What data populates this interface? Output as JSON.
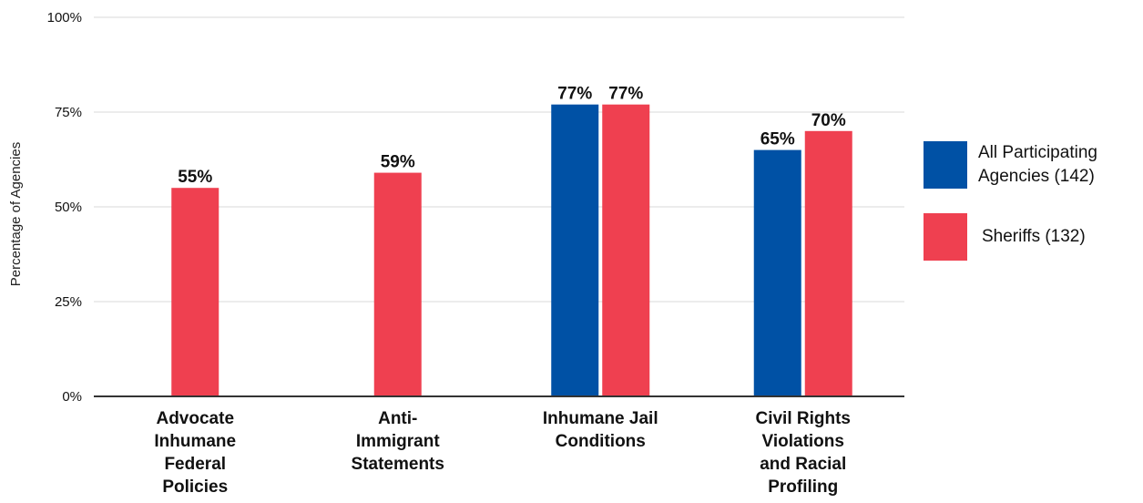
{
  "chart_data": {
    "type": "bar",
    "categories": [
      [
        "Advocate",
        "Inhumane",
        "Federal",
        "Policies"
      ],
      [
        "Anti-",
        "Immigrant",
        "Statements"
      ],
      [
        "Inhumane Jail",
        "Conditions"
      ],
      [
        "Civil Rights",
        "Violations",
        "and Racial",
        "Profiling"
      ]
    ],
    "series": [
      {
        "name": "All Participating Agencies (142)",
        "color": "#0051a5",
        "values": [
          null,
          null,
          77,
          65
        ],
        "labels": [
          "",
          "",
          "77%",
          "65%"
        ]
      },
      {
        "name": "Sheriffs (132)",
        "color": "#ef4050",
        "values": [
          55,
          59,
          77,
          70
        ],
        "labels": [
          "55%",
          "59%",
          "77%",
          "70%"
        ]
      }
    ],
    "ylabel": "Percentage of Agencies",
    "xlabel": "",
    "ylim": [
      0,
      100
    ],
    "yticks": [
      0,
      25,
      50,
      75,
      100
    ],
    "ytick_labels": [
      "0%",
      "25%",
      "50%",
      "75%",
      "100%"
    ],
    "grid": true,
    "legend_position": "right"
  },
  "legend": {
    "items": [
      {
        "label_lines": [
          "All Participating",
          "Agencies (142)"
        ],
        "color": "#0051a5"
      },
      {
        "label_lines": [
          "Sheriffs (132)"
        ],
        "color": "#ef4050"
      }
    ]
  }
}
